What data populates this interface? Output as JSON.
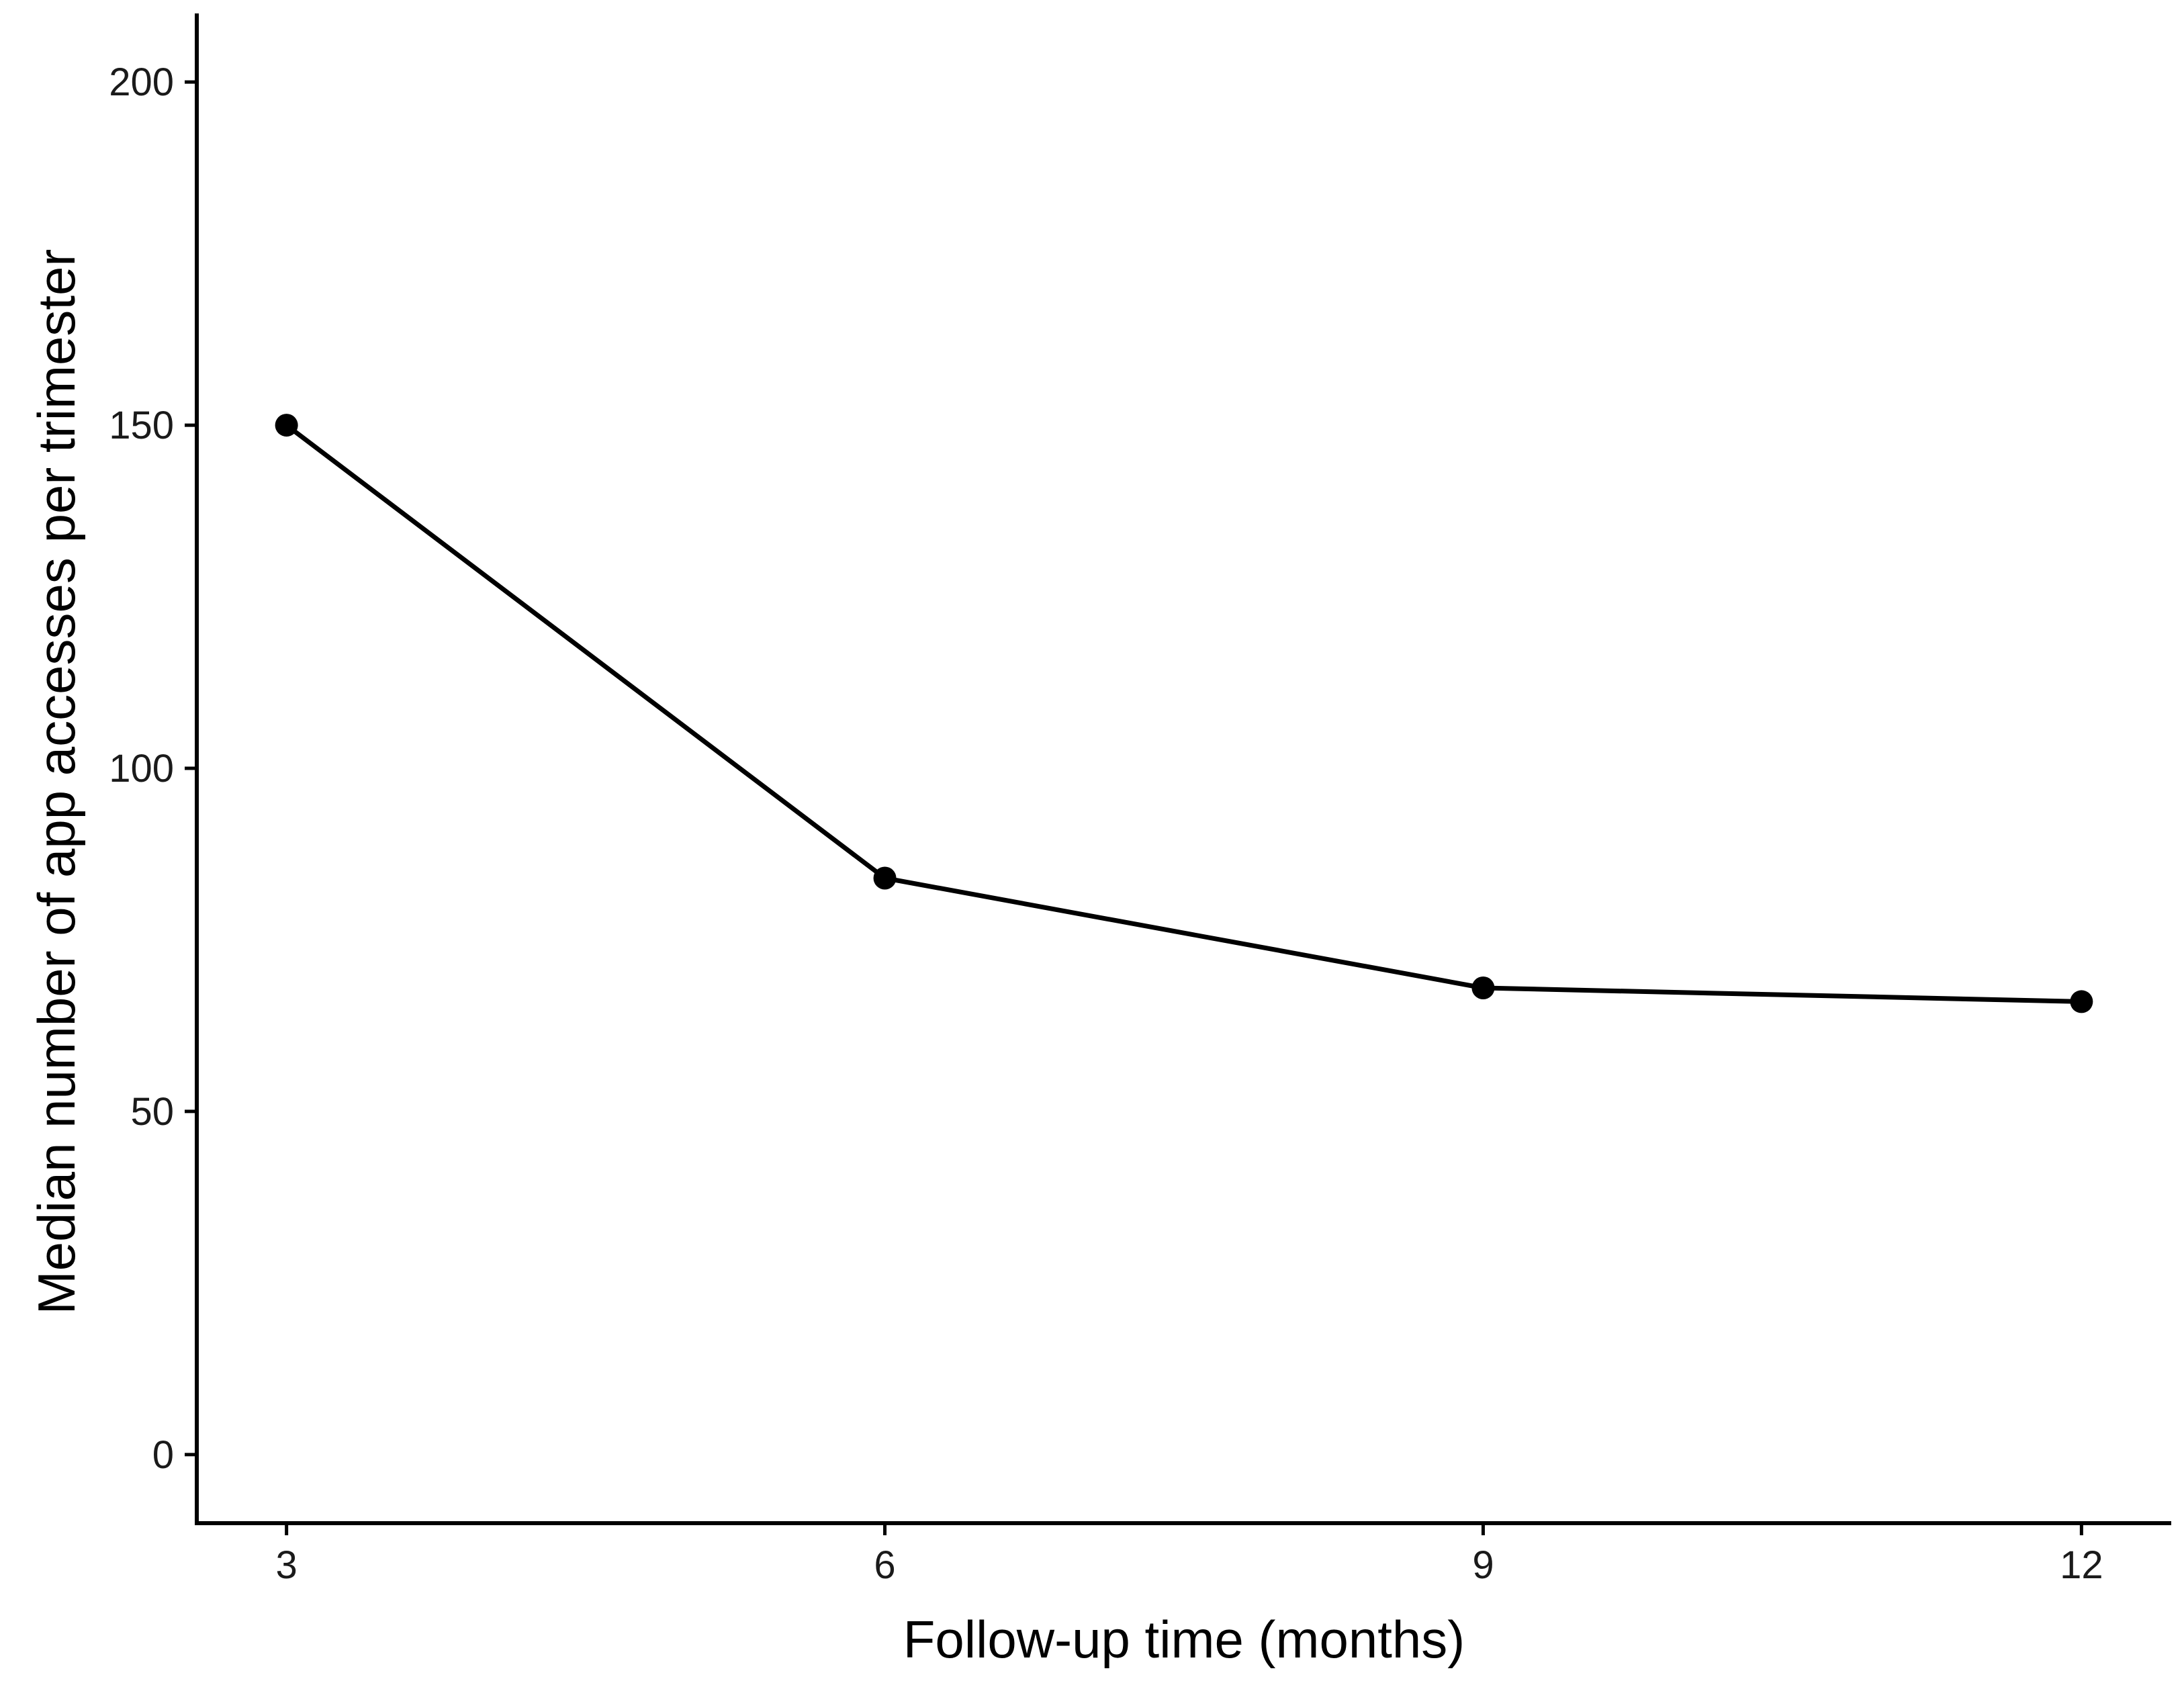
{
  "chart_data": {
    "type": "line",
    "title": "",
    "xlabel": "Follow-up time (months)",
    "ylabel": "Median number of app accesses per trimester",
    "x": [
      3,
      6,
      9,
      12
    ],
    "series": [
      {
        "values": [
          150,
          84,
          68,
          66
        ]
      }
    ],
    "x_ticks": [
      "3",
      "6",
      "9",
      "12"
    ],
    "y_ticks": [
      "0",
      "50",
      "100",
      "150",
      "200"
    ],
    "xlim": [
      2.55,
      12.45
    ],
    "ylim": [
      -10,
      210
    ],
    "grid": false,
    "legend": "none",
    "colors": {
      "line": "#000000",
      "axis": "#000000",
      "text": "#1a1a1a"
    }
  }
}
